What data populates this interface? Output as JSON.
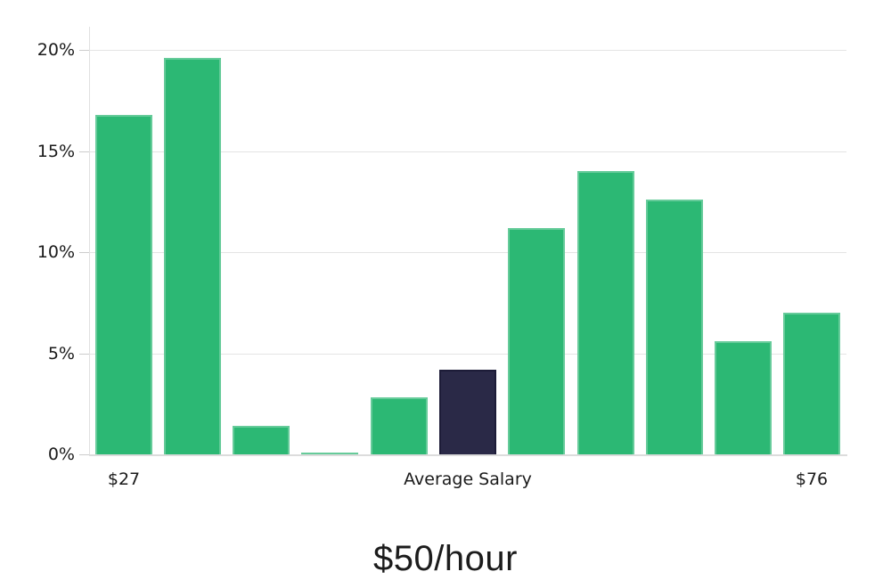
{
  "chart_data": {
    "type": "bar",
    "title": "$50/hour",
    "values": [
      16.8,
      19.6,
      1.4,
      0.1,
      2.8,
      4.2,
      11.2,
      14.0,
      12.6,
      5.6,
      7.0
    ],
    "highlight_index": 5,
    "x_tick_labels": [
      {
        "index": 0,
        "label": "$27"
      },
      {
        "index": 5,
        "label": "Average Salary"
      },
      {
        "index": 10,
        "label": "$76"
      }
    ],
    "y_ticks": [
      {
        "value": 0,
        "label": "0%"
      },
      {
        "value": 5,
        "label": "5%"
      },
      {
        "value": 10,
        "label": "10%"
      },
      {
        "value": 15,
        "label": "15%"
      },
      {
        "value": 20,
        "label": "20%"
      }
    ],
    "ylim": [
      0,
      20
    ],
    "xlabel": "",
    "ylabel": "",
    "grid": true,
    "legend": "none",
    "colors": {
      "bar": "#2cb874",
      "highlight_bar": "#2a2947",
      "gridline": "#e4e4e4",
      "text": "#1a1a1a"
    }
  }
}
